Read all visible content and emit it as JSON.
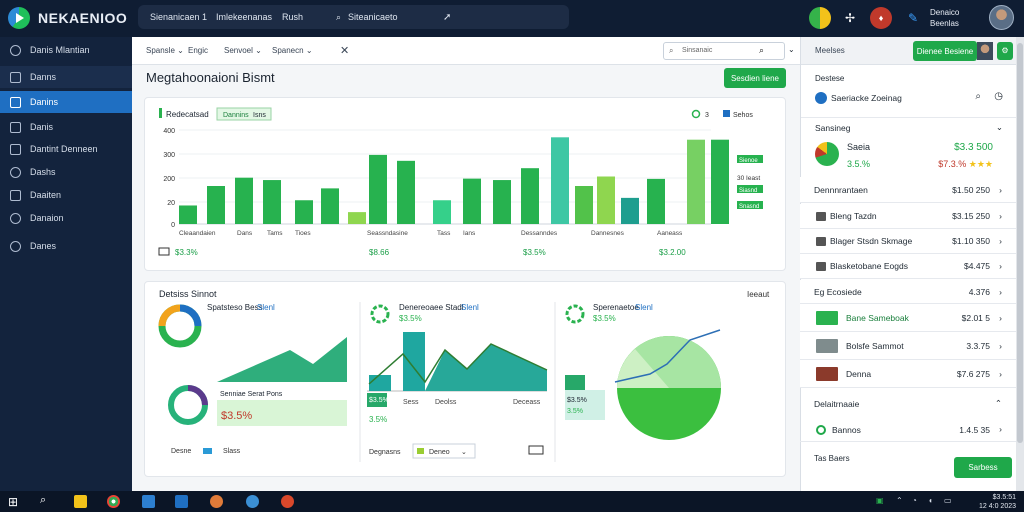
{
  "app": {
    "brand": "NEKAENIOO"
  },
  "header": {
    "search_segments": [
      "Sienanicaen 1",
      "Imlekeenanas",
      "Rush"
    ],
    "search_placeholder": "Siteanicaeto",
    "user_name_line1": "Denaico",
    "user_name_line2": "Beenlas"
  },
  "sidebar": {
    "items": [
      {
        "label": "Danis Mlantian",
        "icon": "circle-icon"
      },
      {
        "label": "Danns",
        "icon": "document-icon"
      },
      {
        "label": "Danins",
        "icon": "grid-icon"
      },
      {
        "label": "Danis",
        "icon": "edit-icon"
      },
      {
        "label": "Dantint Denneen",
        "icon": "file-icon"
      },
      {
        "label": "Dashs",
        "icon": "chat-icon"
      },
      {
        "label": "Daaiten",
        "icon": "users-icon"
      },
      {
        "label": "Danaion",
        "icon": "refresh-icon"
      },
      {
        "label": "Danes",
        "icon": "search-icon"
      }
    ]
  },
  "main": {
    "tabs": [
      "Spansle",
      "Engic",
      "Senvoel",
      "Spanecn"
    ],
    "search_placeholder": "Sinsanaic",
    "page_title": "Megtahoonaioni Bismt",
    "action_button": "Sesdien liene"
  },
  "chart_card": {
    "title": "Redecatsad",
    "tag": "Dannins",
    "tag2": "Isns",
    "legend_labels": [
      "3",
      "Sehos"
    ],
    "summary_values": [
      "$3.3%",
      "$8.66",
      "$3.5%",
      "$3.2.00"
    ],
    "side_labels": [
      "Sienoe",
      "Siasnd",
      "Snasnd"
    ],
    "side_value": "30 Ieast"
  },
  "chart_data": {
    "type": "bar",
    "y_ticks": [
      "400",
      "300",
      "200",
      "20",
      "0"
    ],
    "x_labels": [
      "Cleaandaien",
      "Dans",
      "Tams",
      "Tioes",
      "Seassndasine",
      "Tass",
      "Ians",
      "Dessanndes",
      "Dannesnes",
      "Aaneass"
    ],
    "values": [
      78,
      160,
      195,
      185,
      100,
      150,
      50,
      291,
      266,
      100,
      191,
      185,
      235,
      365,
      160,
      200,
      110,
      190,
      355,
      355
    ]
  },
  "lower_card": {
    "title": "Detsiss Sinnot",
    "right_label": "Ieeaut",
    "panel1": {
      "heading": "Spatsteso Bess",
      "heading_accent": "Slenl",
      "sub_label": "Senniae Serat Pons",
      "value": "$3.5%",
      "legend": "Desne",
      "legend2": "Slass"
    },
    "panel2": {
      "heading": "Denereoaee Stadl",
      "heading_accent": "Slenl",
      "sub": "$3.5%",
      "box_value": "$3.5%",
      "box_sub": "3.5%",
      "x_labels": [
        "Sess",
        "Deolss",
        "Deceass"
      ],
      "select_label": "Degnasns",
      "select_value": "Deneo"
    },
    "panel3": {
      "heading": "Sperenaetoe",
      "heading_accent": "Slenl",
      "sub": "$3.5%",
      "box_value": "$3.5%",
      "box_sub": "3.5%"
    }
  },
  "right_panel": {
    "header_label": "Meelses",
    "header_button": "Dienee Besiene",
    "section1": "Destese",
    "search_row": "Saeriacke Zoeinag",
    "section2": "Sansineg",
    "featured_label": "Saeia",
    "featured_value": "$3.3 500",
    "featured_sub": "3.5.%",
    "featured_sub_value": "$7.3.%",
    "rows": [
      {
        "label": "Dennnrantaen",
        "value": "$1.50 250"
      },
      {
        "label": "Bleng Tazdn",
        "value": "$3.15 250"
      },
      {
        "label": "Blager Stsdn Skmage",
        "value": "$1.10 350"
      },
      {
        "label": "Blasketobane Eogds",
        "value": "$4.475"
      },
      {
        "label": "Eg Ecosiede",
        "value": "4.376"
      },
      {
        "label": "Bane Sameboak",
        "value": "$2.01 5"
      },
      {
        "label": "Bolsfe Sammot",
        "value": "3.3.75"
      },
      {
        "label": "Denna",
        "value": "$7.6 275"
      }
    ],
    "section3": "Delaitrnaaie",
    "bottom_row": {
      "label": "Bannos",
      "value": "1.4.5 35"
    },
    "footer_label": "Tas Baers",
    "footer_button": "Sarbess"
  },
  "taskbar": {
    "clock_line1": "$3.5:51",
    "clock_line2": "12 4:0 2023"
  },
  "colors": {
    "accent": "#1fa84a",
    "nav": "#13233d",
    "active": "#1f6fc2"
  }
}
